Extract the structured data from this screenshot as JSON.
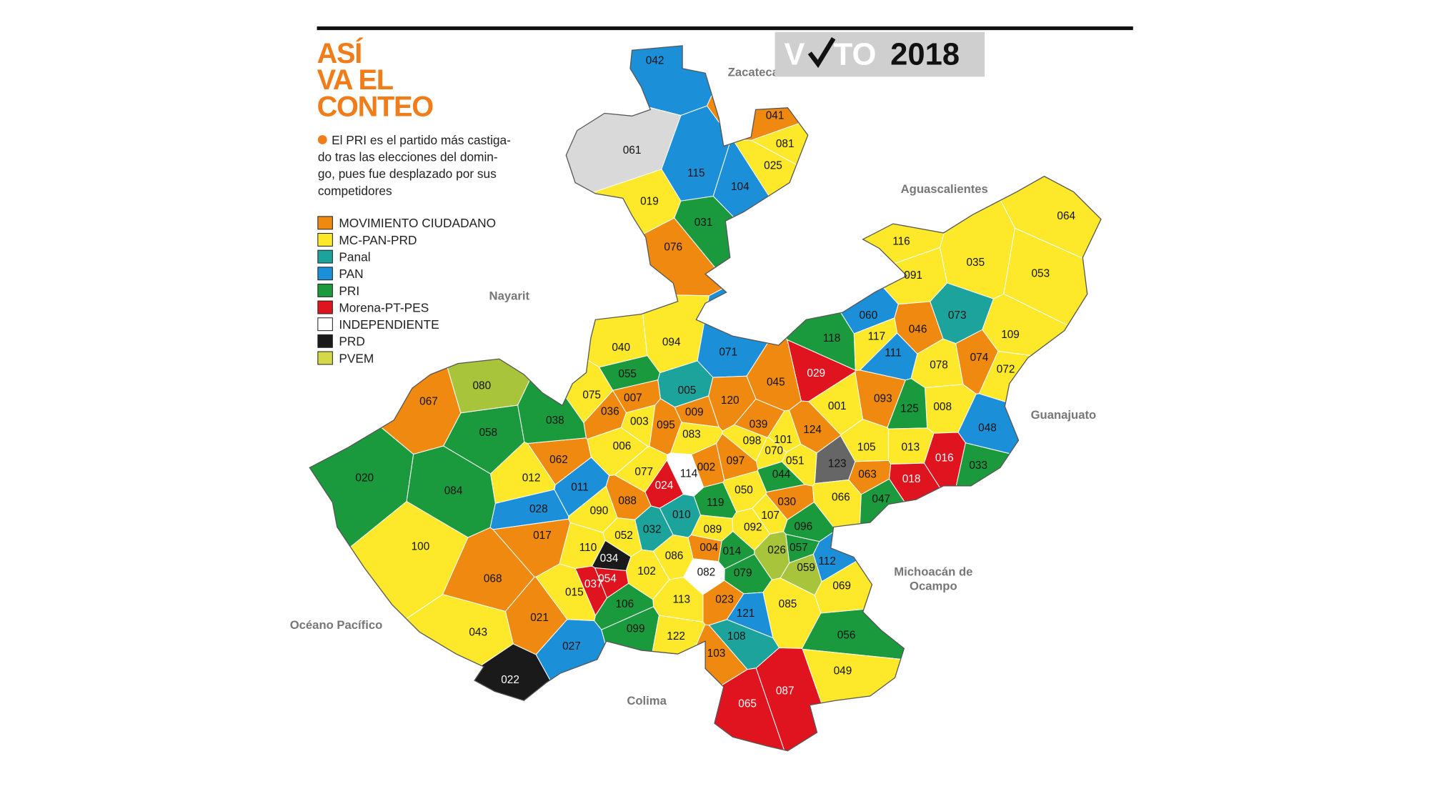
{
  "header": {
    "title_lines": [
      "ASÍ",
      "VA EL",
      "CONTEO"
    ],
    "logo_left": "V",
    "logo_right": "TO",
    "logo_year": "2018",
    "intro_lines": [
      "El PRI es el partido más castiga-",
      "do tras las elecciones del domin-",
      "go, pues fue desplazado por sus",
      "competidores"
    ],
    "bullet_color": "#f07d1a",
    "title_color": "#f07d1a"
  },
  "legend": [
    {
      "label": "MOVIMIENTO CIUDADANO",
      "color": "#f0890f"
    },
    {
      "label": "MC-PAN-PRD",
      "color": "#fde92a"
    },
    {
      "label": "Panal",
      "color": "#1ba39c"
    },
    {
      "label": "PAN",
      "color": "#1c8fd9"
    },
    {
      "label": "PRI",
      "color": "#1a9a3c"
    },
    {
      "label": "Morena-PT-PES",
      "color": "#e0141e"
    },
    {
      "label": "INDEPENDIENTE",
      "color": "#ffffff"
    },
    {
      "label": "PRD",
      "color": "#1a1a1a"
    },
    {
      "label": "PVEM",
      "color": "#d4d94a"
    }
  ],
  "regions": [
    "Zacatecas",
    "Aguascalientes",
    "Nayarit",
    "Guanajuato",
    "Michoacán de Ocampo",
    "Océano Pacífico",
    "Colima"
  ],
  "municipalities": [
    {
      "label": "042",
      "color": "#1c8fd9"
    },
    {
      "label": "061",
      "color": "#d9d9d9"
    },
    {
      "label": "041",
      "color": "#f0890f"
    },
    {
      "label": "081",
      "color": "#fde92a"
    },
    {
      "label": "025",
      "color": "#fde92a"
    },
    {
      "label": "115",
      "color": "#1c8fd9"
    },
    {
      "label": "104",
      "color": "#1c8fd9"
    },
    {
      "label": "019",
      "color": "#fde92a"
    },
    {
      "label": "031",
      "color": "#1a9a3c"
    },
    {
      "label": "076",
      "color": "#f0890f"
    },
    {
      "label": "116",
      "color": "#fde92a"
    },
    {
      "label": "064",
      "color": "#fde92a"
    },
    {
      "label": "035",
      "color": "#fde92a"
    },
    {
      "label": "053",
      "color": "#fde92a"
    },
    {
      "label": "091",
      "color": "#fde92a"
    },
    {
      "label": "060",
      "color": "#1c8fd9"
    },
    {
      "label": "073",
      "color": "#1ba39c"
    },
    {
      "label": "046",
      "color": "#f0890f"
    },
    {
      "label": "109",
      "color": "#fde92a"
    },
    {
      "label": "117",
      "color": "#fde92a"
    },
    {
      "label": "118",
      "color": "#1a9a3c"
    },
    {
      "label": "111",
      "color": "#1c8fd9"
    },
    {
      "label": "074",
      "color": "#f0890f"
    },
    {
      "label": "078",
      "color": "#fde92a"
    },
    {
      "label": "072",
      "color": "#fde92a"
    },
    {
      "label": "040",
      "color": "#fde92a"
    },
    {
      "label": "094",
      "color": "#fde92a"
    },
    {
      "label": "071",
      "color": "#1c8fd9"
    },
    {
      "label": "055",
      "color": "#1a9a3c"
    },
    {
      "label": "029",
      "color": "#e0141e"
    },
    {
      "label": "045",
      "color": "#f0890f"
    },
    {
      "label": "075",
      "color": "#fde92a"
    },
    {
      "label": "007",
      "color": "#f0890f"
    },
    {
      "label": "005",
      "color": "#1ba39c"
    },
    {
      "label": "009",
      "color": "#f0890f"
    },
    {
      "label": "120",
      "color": "#f0890f"
    },
    {
      "label": "001",
      "color": "#fde92a"
    },
    {
      "label": "093",
      "color": "#f0890f"
    },
    {
      "label": "008",
      "color": "#fde92a"
    },
    {
      "label": "125",
      "color": "#1a9a3c"
    },
    {
      "label": "036",
      "color": "#f0890f"
    },
    {
      "label": "003",
      "color": "#fde92a"
    },
    {
      "label": "095",
      "color": "#f0890f"
    },
    {
      "label": "083",
      "color": "#fde92a"
    },
    {
      "label": "039",
      "color": "#f0890f"
    },
    {
      "label": "101",
      "color": "#fde92a"
    },
    {
      "label": "124",
      "color": "#f0890f"
    },
    {
      "label": "048",
      "color": "#1c8fd9"
    },
    {
      "label": "098",
      "color": "#fde92a"
    },
    {
      "label": "070",
      "color": "#fde92a"
    },
    {
      "label": "105",
      "color": "#fde92a"
    },
    {
      "label": "013",
      "color": "#fde92a"
    },
    {
      "label": "006",
      "color": "#fde92a"
    },
    {
      "label": "016",
      "color": "#e0141e"
    },
    {
      "label": "097",
      "color": "#f0890f"
    },
    {
      "label": "051",
      "color": "#fde92a"
    },
    {
      "label": "123",
      "color": "#666666"
    },
    {
      "label": "033",
      "color": "#1a9a3c"
    },
    {
      "label": "002",
      "color": "#f0890f"
    },
    {
      "label": "077",
      "color": "#fde92a"
    },
    {
      "label": "114",
      "color": "#ffffff"
    },
    {
      "label": "024",
      "color": "#e0141e"
    },
    {
      "label": "063",
      "color": "#f0890f"
    },
    {
      "label": "018",
      "color": "#e0141e"
    },
    {
      "label": "044",
      "color": "#1a9a3c"
    },
    {
      "label": "050",
      "color": "#fde92a"
    },
    {
      "label": "030",
      "color": "#f0890f"
    },
    {
      "label": "066",
      "color": "#fde92a"
    },
    {
      "label": "047",
      "color": "#1a9a3c"
    },
    {
      "label": "119",
      "color": "#1a9a3c"
    },
    {
      "label": "010",
      "color": "#1ba39c"
    },
    {
      "label": "107",
      "color": "#fde92a"
    },
    {
      "label": "088",
      "color": "#f0890f"
    },
    {
      "label": "011",
      "color": "#1c8fd9"
    },
    {
      "label": "062",
      "color": "#f0890f"
    },
    {
      "label": "012",
      "color": "#fde92a"
    },
    {
      "label": "028",
      "color": "#1c8fd9"
    },
    {
      "label": "090",
      "color": "#fde92a"
    },
    {
      "label": "038",
      "color": "#1a9a3c"
    },
    {
      "label": "058",
      "color": "#1a9a3c"
    },
    {
      "label": "067",
      "color": "#f0890f"
    },
    {
      "label": "080",
      "color": "#a8c43a"
    },
    {
      "label": "020",
      "color": "#1a9a3c"
    },
    {
      "label": "084",
      "color": "#1a9a3c"
    },
    {
      "label": "100",
      "color": "#fde92a"
    },
    {
      "label": "017",
      "color": "#f0890f"
    },
    {
      "label": "092",
      "color": "#fde92a"
    },
    {
      "label": "096",
      "color": "#1a9a3c"
    },
    {
      "label": "089",
      "color": "#fde92a"
    },
    {
      "label": "032",
      "color": "#1ba39c"
    },
    {
      "label": "052",
      "color": "#fde92a"
    },
    {
      "label": "110",
      "color": "#fde92a"
    },
    {
      "label": "034",
      "color": "#1a1a1a"
    },
    {
      "label": "026",
      "color": "#a8c43a"
    },
    {
      "label": "057",
      "color": "#1a9a3c"
    },
    {
      "label": "004",
      "color": "#f0890f"
    },
    {
      "label": "014",
      "color": "#1a9a3c"
    },
    {
      "label": "086",
      "color": "#fde92a"
    },
    {
      "label": "112",
      "color": "#1c8fd9"
    },
    {
      "label": "059",
      "color": "#a8c43a"
    },
    {
      "label": "082",
      "color": "#ffffff"
    },
    {
      "label": "079",
      "color": "#1a9a3c"
    },
    {
      "label": "102",
      "color": "#fde92a"
    },
    {
      "label": "054",
      "color": "#e0141e"
    },
    {
      "label": "037",
      "color": "#e0141e"
    },
    {
      "label": "068",
      "color": "#f0890f"
    },
    {
      "label": "069",
      "color": "#fde92a"
    },
    {
      "label": "015",
      "color": "#fde92a"
    },
    {
      "label": "113",
      "color": "#fde92a"
    },
    {
      "label": "023",
      "color": "#f0890f"
    },
    {
      "label": "085",
      "color": "#fde92a"
    },
    {
      "label": "106",
      "color": "#1a9a3c"
    },
    {
      "label": "121",
      "color": "#1c8fd9"
    },
    {
      "label": "021",
      "color": "#f0890f"
    },
    {
      "label": "099",
      "color": "#1a9a3c"
    },
    {
      "label": "122",
      "color": "#fde92a"
    },
    {
      "label": "108",
      "color": "#1ba39c"
    },
    {
      "label": "056",
      "color": "#1a9a3c"
    },
    {
      "label": "043",
      "color": "#fde92a"
    },
    {
      "label": "027",
      "color": "#1c8fd9"
    },
    {
      "label": "103",
      "color": "#f0890f"
    },
    {
      "label": "049",
      "color": "#fde92a"
    },
    {
      "label": "022",
      "color": "#1a1a1a"
    },
    {
      "label": "087",
      "color": "#e0141e"
    },
    {
      "label": "065",
      "color": "#e0141e"
    }
  ]
}
